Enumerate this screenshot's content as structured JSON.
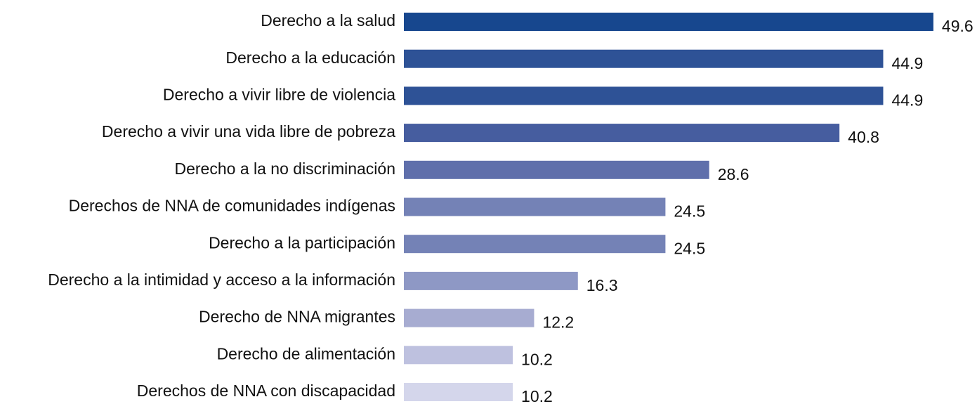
{
  "chart_data": {
    "type": "bar",
    "orientation": "horizontal",
    "categories": [
      "Derecho a la salud",
      "Derecho a la educación",
      "Derecho a vivir libre de violencia",
      "Derecho a vivir una vida libre de pobreza",
      "Derecho a la no discriminación",
      "Derechos de NNA de comunidades indígenas",
      "Derecho a la participación",
      "Derecho a la intimidad y acceso a la información",
      "Derecho de NNA migrantes",
      "Derecho de alimentación",
      "Derechos de NNA con discapacidad"
    ],
    "values": [
      49.6,
      44.9,
      44.9,
      40.8,
      28.6,
      24.5,
      24.5,
      16.3,
      12.2,
      10.2,
      10.2
    ],
    "colors": [
      "#17478e",
      "#2e5296",
      "#2e5296",
      "#465d9f",
      "#5f6fab",
      "#7482b6",
      "#7482b6",
      "#8e98c5",
      "#a7acd1",
      "#bec1df",
      "#d4d6eb"
    ]
  }
}
